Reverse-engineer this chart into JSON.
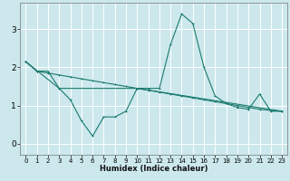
{
  "title": "",
  "xlabel": "Humidex (Indice chaleur)",
  "ylabel": "",
  "bg_color": "#cce8ec",
  "grid_color": "#ffffff",
  "line_color": "#1a7a6e",
  "xlim": [
    -0.5,
    23.5
  ],
  "ylim": [
    -0.3,
    3.7
  ],
  "yticks": [
    0,
    1,
    2,
    3
  ],
  "xticks": [
    0,
    1,
    2,
    3,
    4,
    5,
    6,
    7,
    8,
    9,
    10,
    11,
    12,
    13,
    14,
    15,
    16,
    17,
    18,
    19,
    20,
    21,
    22,
    23
  ],
  "series1_x": [
    0,
    1,
    2,
    3,
    4,
    5,
    6,
    7,
    8,
    9,
    10,
    11,
    12,
    13,
    14,
    15,
    16,
    17,
    18,
    19,
    20,
    21,
    22,
    23
  ],
  "series1_y": [
    2.15,
    1.9,
    1.9,
    1.45,
    1.15,
    0.6,
    0.2,
    0.7,
    0.7,
    0.85,
    1.45,
    1.45,
    1.45,
    2.6,
    3.4,
    3.15,
    2.0,
    1.25,
    1.05,
    0.95,
    0.9,
    1.3,
    0.85,
    0.85
  ],
  "series2_x": [
    0,
    1,
    2,
    3,
    4,
    5,
    6,
    7,
    8,
    9,
    10,
    11,
    12,
    13,
    14,
    15,
    16,
    17,
    18,
    19,
    20,
    21,
    22,
    23
  ],
  "series2_y": [
    2.15,
    1.9,
    1.85,
    1.8,
    1.75,
    1.7,
    1.65,
    1.6,
    1.55,
    1.5,
    1.45,
    1.4,
    1.35,
    1.3,
    1.25,
    1.2,
    1.15,
    1.1,
    1.05,
    1.0,
    0.95,
    0.9,
    0.87,
    0.85
  ],
  "series3_x": [
    0,
    3,
    10,
    23
  ],
  "series3_y": [
    2.15,
    1.45,
    1.45,
    0.85
  ]
}
